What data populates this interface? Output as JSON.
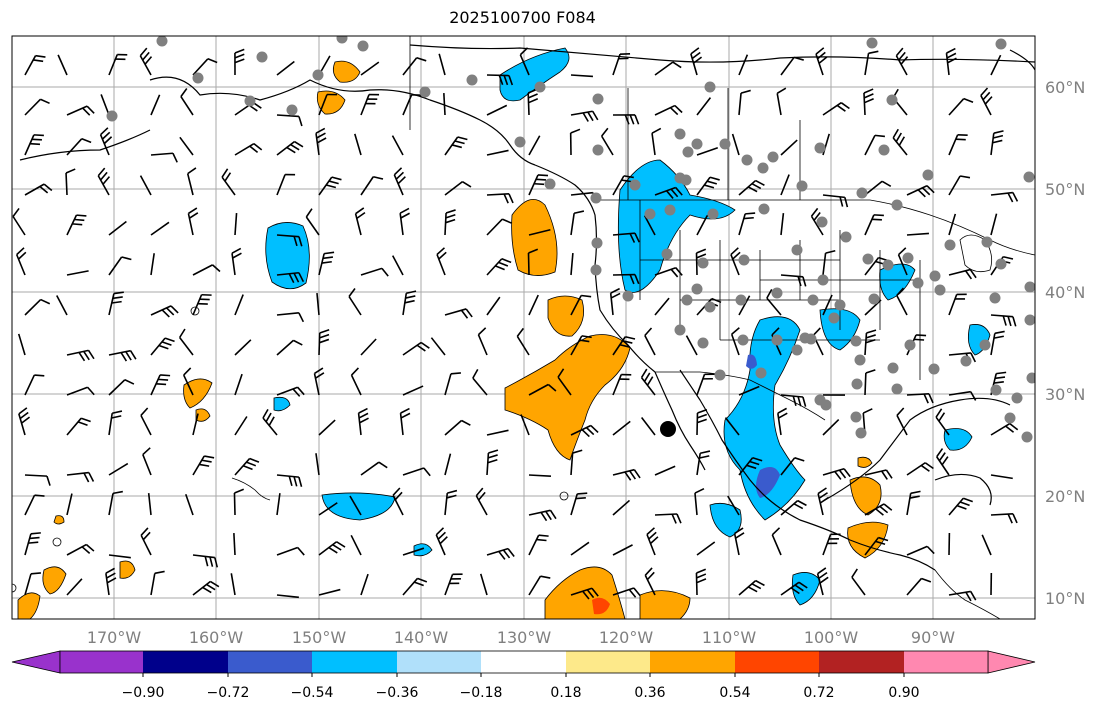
{
  "title": "2025100700 F084",
  "map": {
    "lon_labels": [
      "170°W",
      "160°W",
      "150°W",
      "140°W",
      "130°W",
      "120°W",
      "110°W",
      "100°W",
      "90°W"
    ],
    "lat_labels": [
      "60°N",
      "50°N",
      "40°N",
      "30°N",
      "20°N",
      "10°N"
    ],
    "label_color": "#808080",
    "grid_color": "#aaaaaa"
  },
  "colorbar": {
    "ticks": [
      "−0.90",
      "−0.72",
      "−0.54",
      "−0.36",
      "−0.18",
      "0.18",
      "0.36",
      "0.54",
      "0.72",
      "0.90"
    ],
    "colors": [
      "#9932cc",
      "#00008b",
      "#3a5bcd",
      "#00bfff",
      "#b0e0fa",
      "#ffffff",
      "#fde98a",
      "#ffa500",
      "#ff4500",
      "#b22222",
      "#ff88b0"
    ],
    "under_color": "#9932cc",
    "over_color": "#ff88b0"
  },
  "symbols": {
    "station_color": "#808080",
    "barb_color": "#000000",
    "low_marker_color": "#000000"
  }
}
